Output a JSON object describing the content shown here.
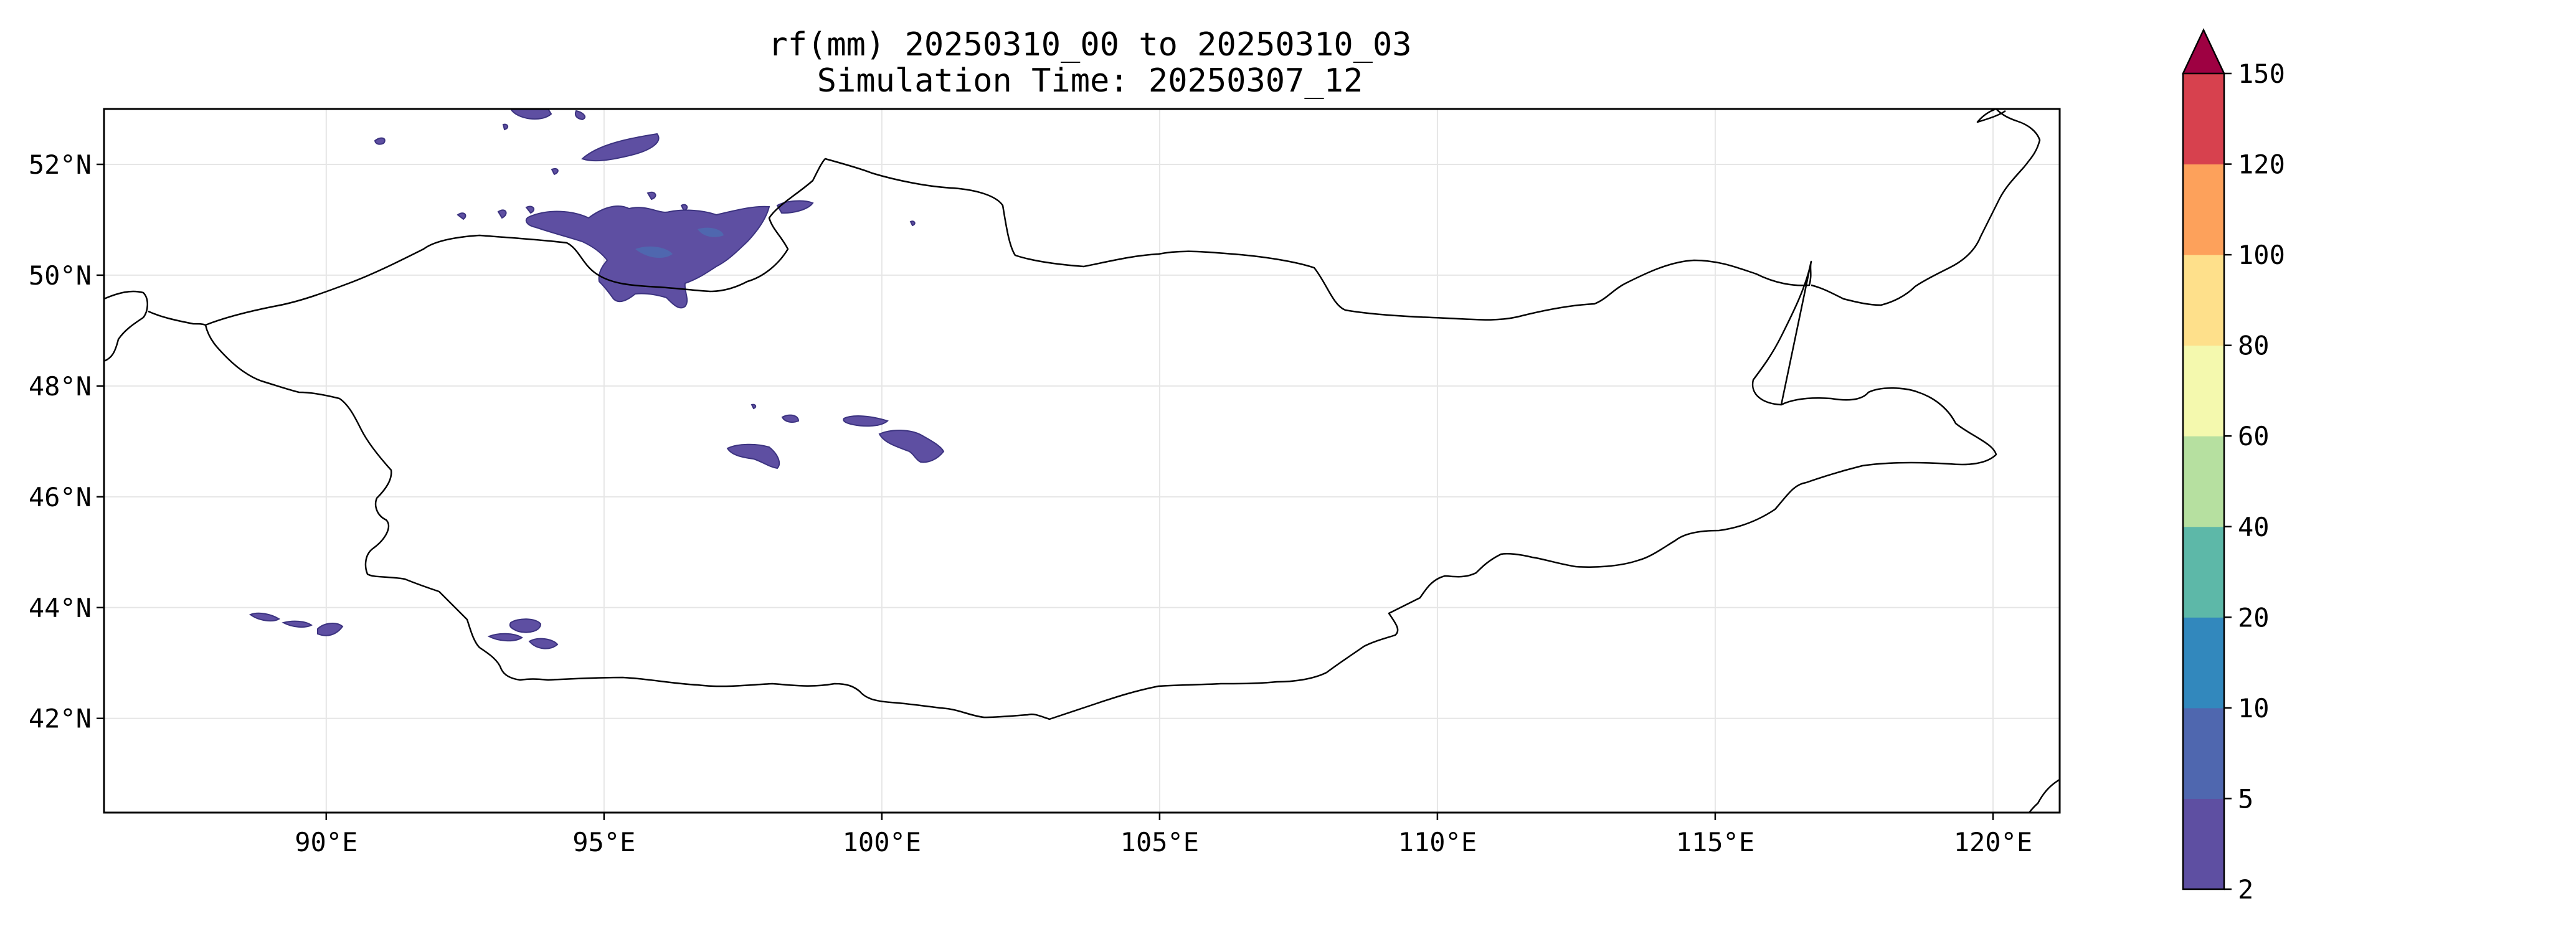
{
  "title": "rf(mm) 20250310_00 to 20250310_03",
  "subtitle": "Simulation Time: 20250307_12",
  "map": {
    "lon_range": [
      86.0,
      121.2
    ],
    "lat_range": [
      40.3,
      53.0
    ],
    "x_ticks": [
      {
        "value": 90,
        "label": "90°E"
      },
      {
        "value": 95,
        "label": "95°E"
      },
      {
        "value": 100,
        "label": "100°E"
      },
      {
        "value": 105,
        "label": "105°E"
      },
      {
        "value": 110,
        "label": "110°E"
      },
      {
        "value": 115,
        "label": "115°E"
      },
      {
        "value": 120,
        "label": "120°E"
      }
    ],
    "y_ticks": [
      {
        "value": 42,
        "label": "42°N"
      },
      {
        "value": 44,
        "label": "44°N"
      },
      {
        "value": 46,
        "label": "46°N"
      },
      {
        "value": 48,
        "label": "48°N"
      },
      {
        "value": 50,
        "label": "50°N"
      },
      {
        "value": 52,
        "label": "52°N"
      }
    ],
    "grid": true,
    "border_color": "#000000",
    "gridline_color": "#e6e6e6"
  },
  "colorbar": {
    "levels": [
      "2",
      "5",
      "10",
      "20",
      "40",
      "60",
      "80",
      "100",
      "120",
      "150"
    ],
    "colors": [
      "#5e4fa2",
      "#4f67af",
      "#3288bd",
      "#5db8a8",
      "#b6e0a0",
      "#f4f9ae",
      "#fee08b",
      "#fda15b",
      "#d7414e"
    ],
    "extend_color": "#9e0142",
    "extend": "max",
    "placement": "right"
  },
  "chart_data": {
    "type": "filled-contour-map",
    "variable": "rf(mm)",
    "period": "20250310_00 to 20250310_03",
    "simulation_time": "20250307_12",
    "levels": [
      2,
      5,
      10,
      20,
      40,
      60,
      80,
      100,
      120,
      150
    ],
    "rain_areas": [
      {
        "region": "northwest Mongolia / Tuva",
        "lon": 96.0,
        "lat": 50.6,
        "level_class": "2-5",
        "peak_class": "5-10"
      },
      {
        "region": "near 95-97E 52N",
        "lon": 96.0,
        "lat": 52.1,
        "level_class": "2-5"
      },
      {
        "region": "central-west Mongolia",
        "lon": 97.4,
        "lat": 46.9,
        "level_class": "2-5"
      },
      {
        "region": "central Mongolia",
        "lon": 100.4,
        "lat": 47.0,
        "level_class": "2-5"
      },
      {
        "region": "southwest near 89-90E",
        "lon": 89.4,
        "lat": 43.7,
        "level_class": "2-5"
      },
      {
        "region": "southwest near 94E",
        "lon": 94.0,
        "lat": 43.5,
        "level_class": "2-5"
      }
    ]
  }
}
